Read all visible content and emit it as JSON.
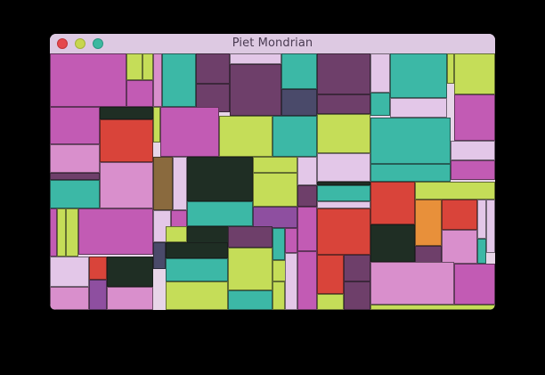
{
  "window": {
    "title": "Piet Mondrian",
    "controls": [
      {
        "name": "close",
        "color": "#e5484d"
      },
      {
        "name": "minimize",
        "color": "#c8d64e"
      },
      {
        "name": "zoom",
        "color": "#3cb8a0"
      }
    ]
  },
  "colors": {
    "magenta": "#c25bb4",
    "lime": "#c5dd58",
    "teal": "#3cb8a6",
    "red": "#d9443a",
    "dark": "#1f2e24",
    "plum": "#6e3f6a",
    "pink": "#d98fcc",
    "lavender": "#e3c7e8",
    "orange": "#e8903a",
    "olive": "#8a6a3e",
    "purple": "#8e4fa0",
    "slate": "#4a4a6a"
  }
}
